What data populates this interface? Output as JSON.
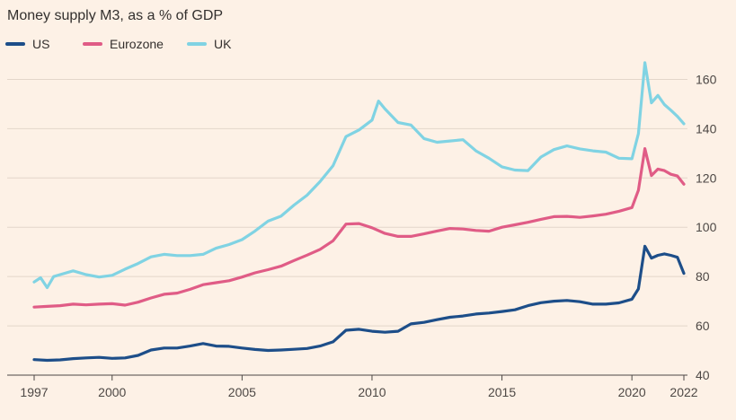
{
  "chart_data": {
    "type": "line",
    "title": "Money supply M3, as a % of GDP",
    "xlabel": "",
    "ylabel": "",
    "xlim": [
      1997,
      2022
    ],
    "ylim": [
      40,
      170
    ],
    "y_ticks": [
      40,
      60,
      80,
      100,
      120,
      140,
      160
    ],
    "x_ticks": [
      1997,
      2000,
      2005,
      2010,
      2015,
      2020,
      2022
    ],
    "y_tick_side": "right",
    "grid": "horizontal",
    "legend_position": "top-left",
    "series": [
      {
        "name": "US",
        "color": "#1d4e89",
        "points": [
          [
            1997.0,
            46.3
          ],
          [
            1997.5,
            46.0
          ],
          [
            1998.0,
            46.2
          ],
          [
            1998.5,
            46.7
          ],
          [
            1999.0,
            47.0
          ],
          [
            1999.5,
            47.2
          ],
          [
            2000.0,
            46.8
          ],
          [
            2000.5,
            47.0
          ],
          [
            2001.0,
            48.0
          ],
          [
            2001.5,
            50.2
          ],
          [
            2002.0,
            51.0
          ],
          [
            2002.5,
            51.0
          ],
          [
            2003.0,
            51.8
          ],
          [
            2003.5,
            52.8
          ],
          [
            2004.0,
            51.8
          ],
          [
            2004.5,
            51.7
          ],
          [
            2005.0,
            51.0
          ],
          [
            2005.5,
            50.4
          ],
          [
            2006.0,
            50.0
          ],
          [
            2006.5,
            50.2
          ],
          [
            2007.0,
            50.5
          ],
          [
            2007.5,
            50.8
          ],
          [
            2008.0,
            51.8
          ],
          [
            2008.5,
            53.5
          ],
          [
            2009.0,
            58.2
          ],
          [
            2009.5,
            58.6
          ],
          [
            2010.0,
            57.8
          ],
          [
            2010.5,
            57.4
          ],
          [
            2011.0,
            57.8
          ],
          [
            2011.5,
            60.8
          ],
          [
            2012.0,
            61.4
          ],
          [
            2012.5,
            62.5
          ],
          [
            2013.0,
            63.5
          ],
          [
            2013.5,
            64.0
          ],
          [
            2014.0,
            64.8
          ],
          [
            2014.5,
            65.2
          ],
          [
            2015.0,
            65.8
          ],
          [
            2015.5,
            66.5
          ],
          [
            2016.0,
            68.2
          ],
          [
            2016.5,
            69.4
          ],
          [
            2017.0,
            70.0
          ],
          [
            2017.5,
            70.3
          ],
          [
            2018.0,
            69.8
          ],
          [
            2018.5,
            68.8
          ],
          [
            2019.0,
            68.8
          ],
          [
            2019.5,
            69.3
          ],
          [
            2020.0,
            70.8
          ],
          [
            2020.25,
            75.0
          ],
          [
            2020.5,
            92.3
          ],
          [
            2020.75,
            87.5
          ],
          [
            2021.0,
            88.6
          ],
          [
            2021.25,
            89.2
          ],
          [
            2021.5,
            88.6
          ],
          [
            2021.75,
            87.8
          ],
          [
            2022.0,
            81.3
          ]
        ]
      },
      {
        "name": "Eurozone",
        "color": "#e05c86",
        "points": [
          [
            1997.0,
            67.6
          ],
          [
            1997.5,
            67.9
          ],
          [
            1998.0,
            68.2
          ],
          [
            1998.5,
            68.8
          ],
          [
            1999.0,
            68.5
          ],
          [
            1999.5,
            68.8
          ],
          [
            2000.0,
            69.0
          ],
          [
            2000.5,
            68.4
          ],
          [
            2001.0,
            69.6
          ],
          [
            2001.5,
            71.3
          ],
          [
            2002.0,
            72.8
          ],
          [
            2002.5,
            73.3
          ],
          [
            2003.0,
            74.8
          ],
          [
            2003.5,
            76.7
          ],
          [
            2004.0,
            77.5
          ],
          [
            2004.5,
            78.3
          ],
          [
            2005.0,
            79.8
          ],
          [
            2005.5,
            81.5
          ],
          [
            2006.0,
            82.8
          ],
          [
            2006.5,
            84.2
          ],
          [
            2007.0,
            86.5
          ],
          [
            2007.5,
            88.7
          ],
          [
            2008.0,
            91.0
          ],
          [
            2008.5,
            94.5
          ],
          [
            2009.0,
            101.3
          ],
          [
            2009.5,
            101.5
          ],
          [
            2010.0,
            99.8
          ],
          [
            2010.5,
            97.5
          ],
          [
            2011.0,
            96.3
          ],
          [
            2011.5,
            96.3
          ],
          [
            2012.0,
            97.3
          ],
          [
            2012.5,
            98.5
          ],
          [
            2013.0,
            99.5
          ],
          [
            2013.5,
            99.3
          ],
          [
            2014.0,
            98.7
          ],
          [
            2014.5,
            98.4
          ],
          [
            2015.0,
            100.0
          ],
          [
            2015.5,
            101.0
          ],
          [
            2016.0,
            102.0
          ],
          [
            2016.5,
            103.2
          ],
          [
            2017.0,
            104.3
          ],
          [
            2017.5,
            104.4
          ],
          [
            2018.0,
            104.0
          ],
          [
            2018.5,
            104.6
          ],
          [
            2019.0,
            105.3
          ],
          [
            2019.5,
            106.5
          ],
          [
            2020.0,
            108.0
          ],
          [
            2020.25,
            115.0
          ],
          [
            2020.5,
            131.9
          ],
          [
            2020.75,
            121.0
          ],
          [
            2021.0,
            123.6
          ],
          [
            2021.25,
            123.0
          ],
          [
            2021.5,
            121.5
          ],
          [
            2021.75,
            120.8
          ],
          [
            2022.0,
            117.5
          ]
        ]
      },
      {
        "name": "UK",
        "color": "#80d3e3",
        "points": [
          [
            1997.0,
            77.8
          ],
          [
            1997.25,
            79.5
          ],
          [
            1997.5,
            75.5
          ],
          [
            1997.75,
            80.0
          ],
          [
            1998.0,
            80.8
          ],
          [
            1998.5,
            82.3
          ],
          [
            1999.0,
            80.8
          ],
          [
            1999.5,
            79.8
          ],
          [
            2000.0,
            80.5
          ],
          [
            2000.5,
            83.0
          ],
          [
            2001.0,
            85.3
          ],
          [
            2001.5,
            88.0
          ],
          [
            2002.0,
            89.0
          ],
          [
            2002.5,
            88.5
          ],
          [
            2003.0,
            88.5
          ],
          [
            2003.5,
            89.0
          ],
          [
            2004.0,
            91.5
          ],
          [
            2004.5,
            93.0
          ],
          [
            2005.0,
            95.0
          ],
          [
            2005.5,
            98.5
          ],
          [
            2006.0,
            102.5
          ],
          [
            2006.5,
            104.5
          ],
          [
            2007.0,
            109.0
          ],
          [
            2007.5,
            113.0
          ],
          [
            2008.0,
            118.5
          ],
          [
            2008.5,
            125.0
          ],
          [
            2009.0,
            136.8
          ],
          [
            2009.5,
            139.5
          ],
          [
            2010.0,
            143.5
          ],
          [
            2010.25,
            151.2
          ],
          [
            2010.5,
            148.0
          ],
          [
            2011.0,
            142.5
          ],
          [
            2011.5,
            141.5
          ],
          [
            2012.0,
            136.0
          ],
          [
            2012.5,
            134.5
          ],
          [
            2013.0,
            135.0
          ],
          [
            2013.5,
            135.5
          ],
          [
            2014.0,
            131.0
          ],
          [
            2014.5,
            128.0
          ],
          [
            2015.0,
            124.5
          ],
          [
            2015.5,
            123.2
          ],
          [
            2016.0,
            123.0
          ],
          [
            2016.5,
            128.5
          ],
          [
            2017.0,
            131.5
          ],
          [
            2017.5,
            133.0
          ],
          [
            2018.0,
            131.8
          ],
          [
            2018.5,
            131.0
          ],
          [
            2019.0,
            130.5
          ],
          [
            2019.5,
            128.0
          ],
          [
            2020.0,
            127.8
          ],
          [
            2020.25,
            138.0
          ],
          [
            2020.5,
            166.8
          ],
          [
            2020.75,
            150.5
          ],
          [
            2021.0,
            153.5
          ],
          [
            2021.25,
            149.8
          ],
          [
            2021.5,
            147.5
          ],
          [
            2021.75,
            145.0
          ],
          [
            2022.0,
            142.0
          ]
        ]
      }
    ]
  }
}
